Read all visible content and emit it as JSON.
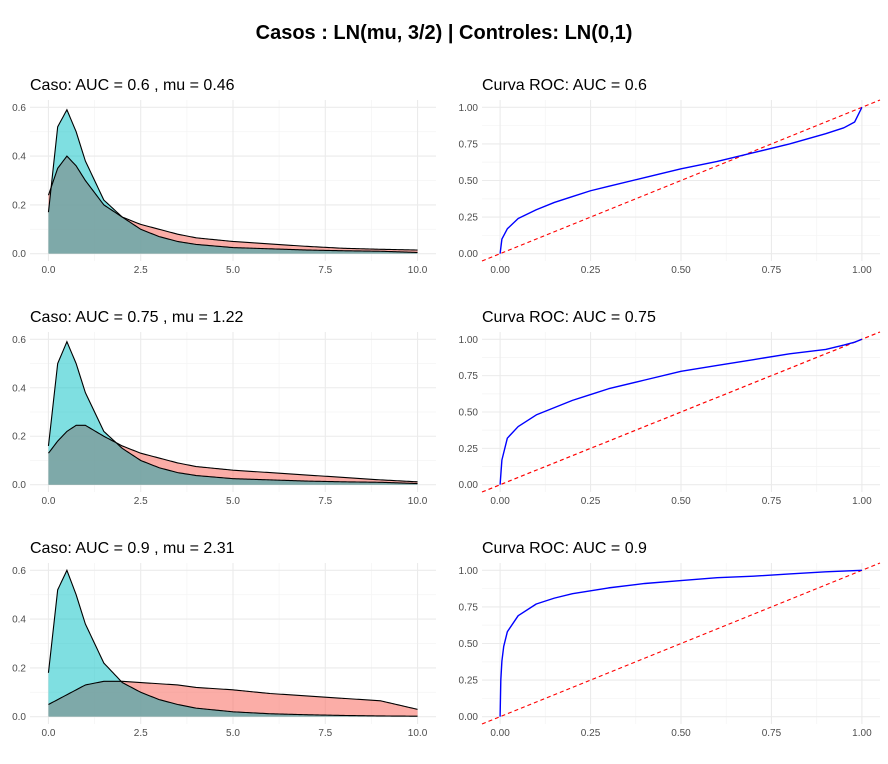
{
  "title": "Casos : LN(mu, 3/2) | Controles: LN(0,1)",
  "colors": {
    "case_fill": "#F8766D",
    "control_fill": "#00BFC4",
    "overlap_fill": "#7F9F9E",
    "roc_line": "#0000FF",
    "diagonal": "#FF0000",
    "grid_major": "#EBEBEB",
    "grid_minor": "#F5F5F5"
  },
  "chart_data": [
    {
      "type": "area",
      "title": "Caso: AUC =  0.6 , mu =  0.46",
      "xlim": [
        0,
        10
      ],
      "ylim": [
        0,
        0.6
      ],
      "x_ticks": [
        "0.0",
        "2.5",
        "5.0",
        "7.5",
        "10.0"
      ],
      "y_ticks": [
        "0.0",
        "0.2",
        "0.4",
        "0.6"
      ],
      "series": [
        {
          "role": "controls",
          "x": [
            0,
            0.25,
            0.5,
            0.75,
            1,
            1.5,
            2,
            2.5,
            3,
            3.5,
            4,
            5,
            6,
            7,
            8,
            9,
            10
          ],
          "values": [
            0.17,
            0.52,
            0.59,
            0.5,
            0.38,
            0.22,
            0.15,
            0.1,
            0.07,
            0.05,
            0.038,
            0.025,
            0.02,
            0.015,
            0.012,
            0.01,
            0.005
          ]
        },
        {
          "role": "cases",
          "x": [
            0,
            0.25,
            0.5,
            0.75,
            1,
            1.5,
            2,
            2.5,
            3,
            3.5,
            4,
            5,
            6,
            7,
            8,
            9,
            10
          ],
          "values": [
            0.24,
            0.35,
            0.4,
            0.36,
            0.3,
            0.2,
            0.15,
            0.12,
            0.1,
            0.08,
            0.065,
            0.05,
            0.04,
            0.03,
            0.022,
            0.018,
            0.015
          ]
        }
      ]
    },
    {
      "type": "line",
      "title": "Curva ROC: AUC =  0.6",
      "xlim": [
        0,
        1
      ],
      "ylim": [
        0,
        1
      ],
      "x_ticks": [
        "0.00",
        "0.25",
        "0.50",
        "0.75",
        "1.00"
      ],
      "y_ticks": [
        "0.00",
        "0.25",
        "0.50",
        "0.75",
        "1.00"
      ],
      "x": [
        0,
        0.005,
        0.02,
        0.05,
        0.1,
        0.15,
        0.2,
        0.25,
        0.3,
        0.4,
        0.5,
        0.6,
        0.7,
        0.8,
        0.9,
        0.95,
        0.98,
        1
      ],
      "values": [
        0,
        0.1,
        0.17,
        0.24,
        0.3,
        0.35,
        0.39,
        0.43,
        0.46,
        0.52,
        0.58,
        0.63,
        0.69,
        0.75,
        0.82,
        0.86,
        0.9,
        1
      ]
    },
    {
      "type": "area",
      "title": "Caso: AUC =  0.75 , mu =  1.22",
      "xlim": [
        0,
        10
      ],
      "ylim": [
        0,
        0.6
      ],
      "x_ticks": [
        "0.0",
        "2.5",
        "5.0",
        "7.5",
        "10.0"
      ],
      "y_ticks": [
        "0.0",
        "0.2",
        "0.4",
        "0.6"
      ],
      "series": [
        {
          "role": "controls",
          "x": [
            0,
            0.25,
            0.5,
            0.75,
            1,
            1.5,
            2,
            2.5,
            3,
            3.5,
            4,
            5,
            6,
            7,
            8,
            9,
            10
          ],
          "values": [
            0.16,
            0.5,
            0.59,
            0.5,
            0.38,
            0.22,
            0.15,
            0.1,
            0.07,
            0.05,
            0.038,
            0.025,
            0.02,
            0.015,
            0.012,
            0.01,
            0.005
          ]
        },
        {
          "role": "cases",
          "x": [
            0,
            0.25,
            0.5,
            0.75,
            1,
            1.5,
            2,
            2.5,
            3,
            3.5,
            4,
            5,
            6,
            7,
            8,
            9,
            10
          ],
          "values": [
            0.13,
            0.18,
            0.22,
            0.245,
            0.245,
            0.2,
            0.16,
            0.13,
            0.11,
            0.09,
            0.075,
            0.06,
            0.05,
            0.04,
            0.03,
            0.02,
            0.012
          ]
        }
      ]
    },
    {
      "type": "line",
      "title": "Curva ROC: AUC =  0.75",
      "xlim": [
        0,
        1
      ],
      "ylim": [
        0,
        1
      ],
      "x": [
        0,
        0.005,
        0.02,
        0.05,
        0.1,
        0.15,
        0.2,
        0.25,
        0.3,
        0.4,
        0.5,
        0.6,
        0.7,
        0.8,
        0.9,
        0.95,
        0.98,
        1
      ],
      "values": [
        0,
        0.17,
        0.32,
        0.4,
        0.48,
        0.53,
        0.58,
        0.62,
        0.66,
        0.72,
        0.78,
        0.82,
        0.86,
        0.9,
        0.93,
        0.96,
        0.98,
        1
      ],
      "x_ticks": [
        "0.00",
        "0.25",
        "0.50",
        "0.75",
        "1.00"
      ],
      "y_ticks": [
        "0.00",
        "0.25",
        "0.50",
        "0.75",
        "1.00"
      ]
    },
    {
      "type": "area",
      "title": "Caso: AUC =  0.9 , mu =  2.31",
      "xlim": [
        0,
        10
      ],
      "ylim": [
        0,
        0.6
      ],
      "x_ticks": [
        "0.0",
        "2.5",
        "5.0",
        "7.5",
        "10.0"
      ],
      "y_ticks": [
        "0.0",
        "0.2",
        "0.4",
        "0.6"
      ],
      "series": [
        {
          "role": "controls",
          "x": [
            0,
            0.25,
            0.5,
            0.75,
            1,
            1.5,
            2,
            2.5,
            3,
            3.5,
            4,
            5,
            6,
            7,
            8,
            9,
            10
          ],
          "values": [
            0.18,
            0.52,
            0.6,
            0.5,
            0.38,
            0.22,
            0.14,
            0.1,
            0.07,
            0.05,
            0.035,
            0.02,
            0.012,
            0.008,
            0.005,
            0.003,
            0.002
          ]
        },
        {
          "role": "cases",
          "x": [
            0,
            0.25,
            0.5,
            0.75,
            1,
            1.5,
            2,
            2.5,
            3,
            3.5,
            4,
            5,
            6,
            7,
            8,
            9,
            10
          ],
          "values": [
            0.05,
            0.07,
            0.09,
            0.11,
            0.13,
            0.145,
            0.145,
            0.14,
            0.135,
            0.13,
            0.12,
            0.11,
            0.095,
            0.085,
            0.075,
            0.065,
            0.03
          ]
        }
      ]
    },
    {
      "type": "line",
      "title": "Curva ROC: AUC =  0.9",
      "xlim": [
        0,
        1
      ],
      "ylim": [
        0,
        1
      ],
      "x": [
        0,
        0.002,
        0.005,
        0.01,
        0.02,
        0.05,
        0.1,
        0.15,
        0.2,
        0.3,
        0.4,
        0.5,
        0.6,
        0.7,
        0.8,
        0.9,
        1
      ],
      "values": [
        0,
        0.25,
        0.38,
        0.48,
        0.58,
        0.69,
        0.77,
        0.81,
        0.84,
        0.88,
        0.91,
        0.93,
        0.95,
        0.96,
        0.975,
        0.99,
        1
      ],
      "x_ticks": [
        "0.00",
        "0.25",
        "0.50",
        "0.75",
        "1.00"
      ],
      "y_ticks": [
        "0.00",
        "0.25",
        "0.50",
        "0.75",
        "1.00"
      ]
    }
  ]
}
